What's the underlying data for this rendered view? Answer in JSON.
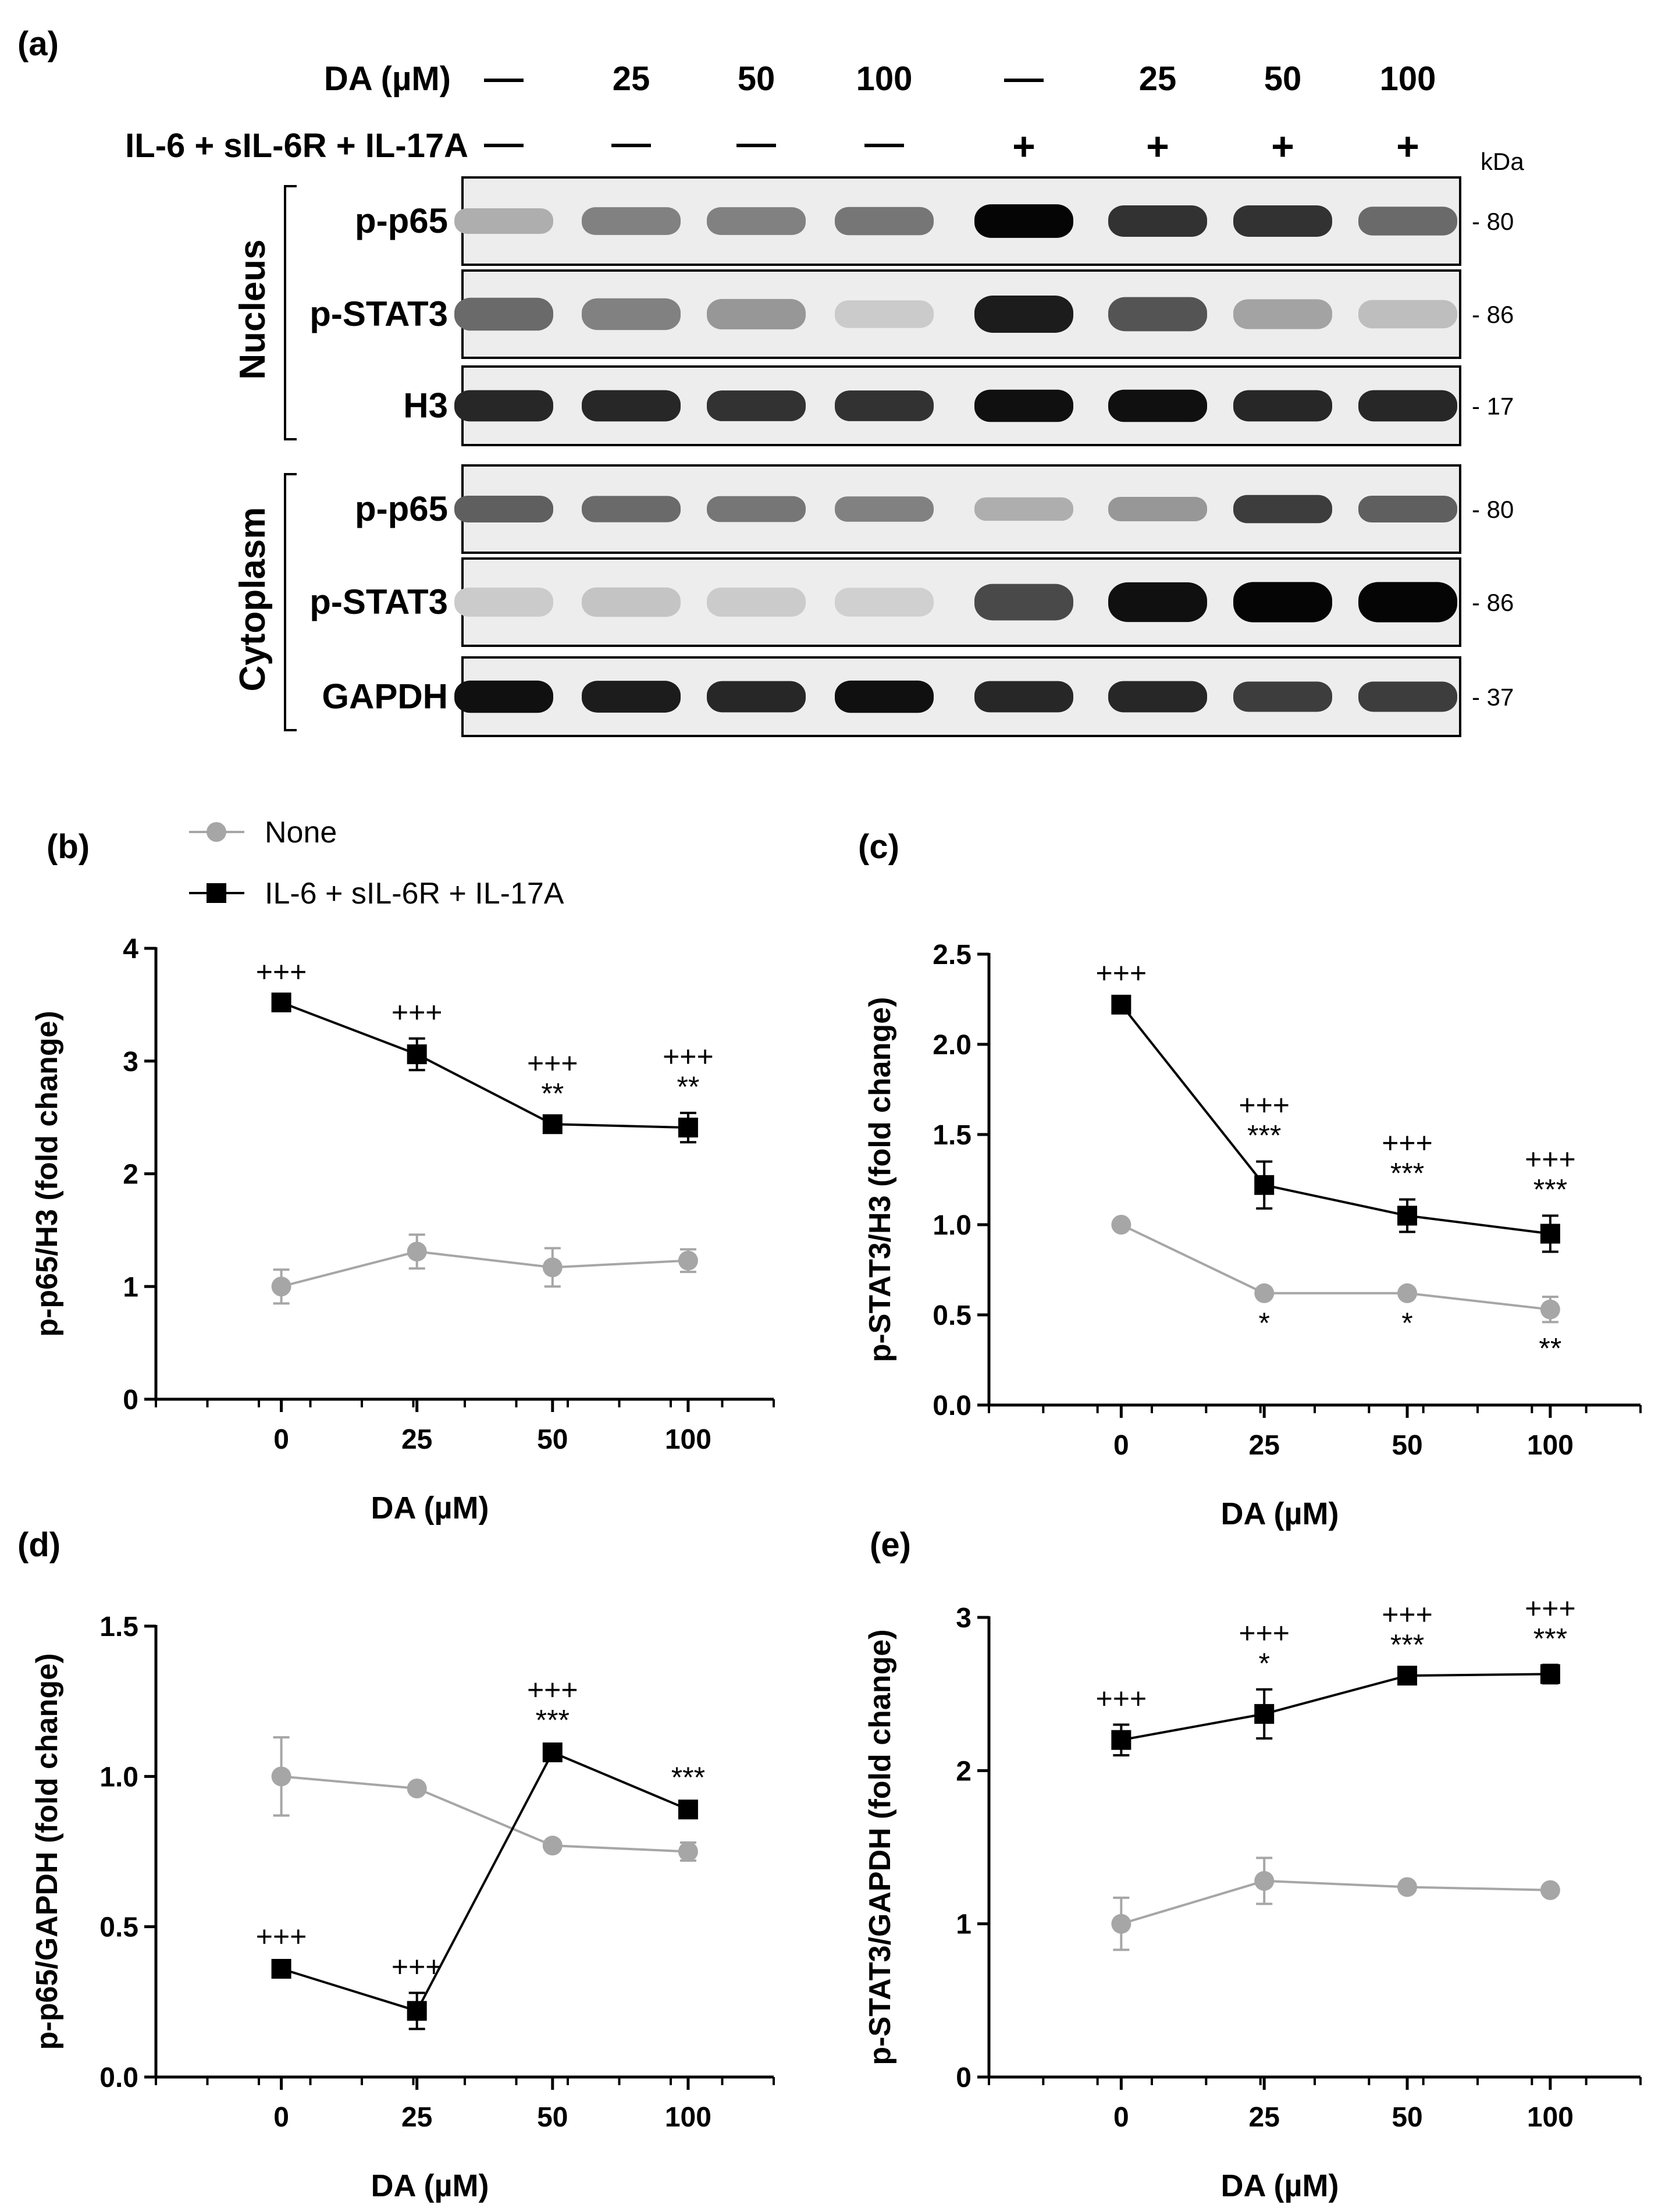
{
  "panel_a": {
    "letter": "(a)",
    "da_label": "DA (µM)",
    "da_values": [
      "—",
      "25",
      "50",
      "100",
      "—",
      "25",
      "50",
      "100"
    ],
    "cytokine_label": "IL-6 + sIL-6R + IL-17A",
    "cytokine_values": [
      "—",
      "—",
      "—",
      "—",
      "+",
      "+",
      "+",
      "+"
    ],
    "kda_label": "kDa",
    "groups": [
      {
        "name": "Nucleus",
        "rows": [
          {
            "protein": "p-p65",
            "kda": "80",
            "intensity": [
              0.25,
              0.45,
              0.45,
              0.5,
              1.0,
              0.8,
              0.8,
              0.55
            ],
            "thickness": 0.35
          },
          {
            "protein": "p-STAT3",
            "kda": "86",
            "intensity": [
              0.55,
              0.45,
              0.35,
              0.12,
              0.9,
              0.65,
              0.3,
              0.18
            ],
            "thickness": 0.4
          },
          {
            "protein": "H3",
            "kda": "17",
            "intensity": [
              0.85,
              0.85,
              0.8,
              0.8,
              0.95,
              0.95,
              0.85,
              0.85
            ],
            "thickness": 0.38
          }
        ]
      },
      {
        "name": "Cytoplasm",
        "rows": [
          {
            "protein": "p-p65",
            "kda": "80",
            "intensity": [
              0.6,
              0.55,
              0.5,
              0.45,
              0.25,
              0.35,
              0.75,
              0.6
            ],
            "thickness": 0.32
          },
          {
            "protein": "p-STAT3",
            "kda": "86",
            "intensity": [
              0.12,
              0.15,
              0.12,
              0.1,
              0.7,
              0.95,
              1.0,
              1.0
            ],
            "thickness": 0.42
          },
          {
            "protein": "GAPDH",
            "kda": "37",
            "intensity": [
              0.95,
              0.9,
              0.85,
              0.95,
              0.85,
              0.85,
              0.75,
              0.75
            ],
            "thickness": 0.38
          }
        ]
      }
    ]
  },
  "legend": {
    "none_label": "None",
    "treated_label": "IL-6 + sIL-6R + IL-17A",
    "none_color": "#a6a6a6",
    "treated_color": "#000000"
  },
  "chart_data": [
    {
      "type": "line",
      "letter": "(b)",
      "xlabel": "DA (µM)",
      "ylabel": "p-p65/H3 (fold change)",
      "categories": [
        "0",
        "25",
        "50",
        "100"
      ],
      "ylim": [
        0,
        4
      ],
      "yticks": [
        "0",
        "1",
        "2",
        "3",
        "4"
      ],
      "series": [
        {
          "name": "None",
          "values": [
            1.0,
            1.31,
            1.17,
            1.23
          ],
          "errors": [
            0.15,
            0.15,
            0.17,
            0.1
          ],
          "sig": [
            "",
            "",
            "",
            ""
          ]
        },
        {
          "name": "IL-6 + sIL-6R + IL-17A",
          "values": [
            3.52,
            3.06,
            2.44,
            2.41
          ],
          "errors": [
            0.04,
            0.14,
            0.04,
            0.13
          ],
          "sig": [
            "+++",
            "+++",
            "+++\n**",
            "+++\n**"
          ]
        }
      ]
    },
    {
      "type": "line",
      "letter": "(c)",
      "xlabel": "DA (µM)",
      "ylabel": "p-STAT3/H3 (fold change)",
      "categories": [
        "0",
        "25",
        "50",
        "100"
      ],
      "ylim": [
        0,
        2.5
      ],
      "yticks": [
        "0.0",
        "0.5",
        "1.0",
        "1.5",
        "2.0",
        "2.5"
      ],
      "series": [
        {
          "name": "None",
          "values": [
            1.0,
            0.62,
            0.62,
            0.53
          ],
          "errors": [
            0.02,
            0.02,
            0.02,
            0.07
          ],
          "sig": [
            "",
            "*",
            "*",
            "**"
          ]
        },
        {
          "name": "IL-6 + sIL-6R + IL-17A",
          "values": [
            2.22,
            1.22,
            1.05,
            0.95
          ],
          "errors": [
            0.03,
            0.13,
            0.09,
            0.1
          ],
          "sig": [
            "+++",
            "+++\n***",
            "+++\n***",
            "+++\n***"
          ]
        }
      ]
    },
    {
      "type": "line",
      "letter": "(d)",
      "xlabel": "DA (µM)",
      "ylabel": "p-p65/GAPDH (fold change)",
      "categories": [
        "0",
        "25",
        "50",
        "100"
      ],
      "ylim": [
        0,
        1.5
      ],
      "yticks": [
        "0.0",
        "0.5",
        "1.0",
        "1.5"
      ],
      "series": [
        {
          "name": "None",
          "values": [
            1.0,
            0.96,
            0.77,
            0.75
          ],
          "errors": [
            0.13,
            0.01,
            0.01,
            0.03
          ],
          "sig": [
            "",
            "",
            "",
            ""
          ]
        },
        {
          "name": "IL-6 + sIL-6R + IL-17A",
          "values": [
            0.36,
            0.22,
            1.08,
            0.89
          ],
          "errors": [
            0.02,
            0.06,
            0.02,
            0.02
          ],
          "sig": [
            "+++",
            "+++",
            "+++\n***",
            "***"
          ]
        }
      ]
    },
    {
      "type": "line",
      "letter": "(e)",
      "xlabel": "DA (µM)",
      "ylabel": "p-STAT3/GAPDH (fold change)",
      "categories": [
        "0",
        "25",
        "50",
        "100"
      ],
      "ylim": [
        0,
        3
      ],
      "yticks": [
        "0",
        "1",
        "2",
        "3"
      ],
      "series": [
        {
          "name": "None",
          "values": [
            1.0,
            1.28,
            1.24,
            1.22
          ],
          "errors": [
            0.17,
            0.15,
            0.02,
            0.02
          ],
          "sig": [
            "",
            "",
            "",
            ""
          ]
        },
        {
          "name": "IL-6 + sIL-6R + IL-17A",
          "values": [
            2.2,
            2.37,
            2.62,
            2.63
          ],
          "errors": [
            0.1,
            0.16,
            0.03,
            0.06
          ],
          "sig": [
            "+++",
            "+++\n*",
            "+++\n***",
            "+++\n***"
          ]
        }
      ]
    }
  ]
}
